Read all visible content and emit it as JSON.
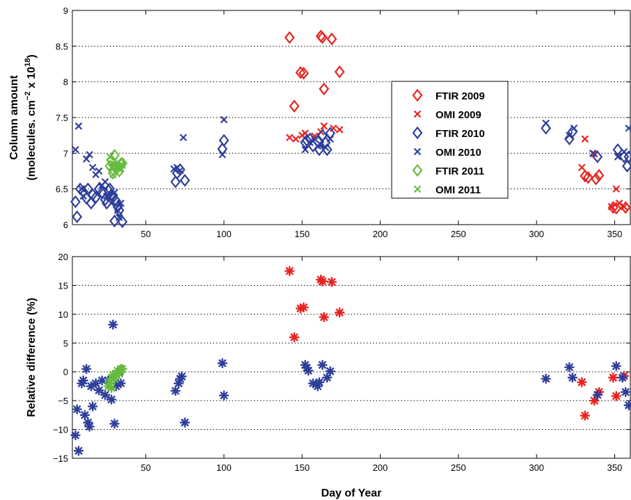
{
  "colors": {
    "y2009": "#e8231f",
    "y2010": "#2e3f9a",
    "y2011": "#66bb3f"
  },
  "chart_data": [
    {
      "type": "scatter",
      "title": "",
      "xlabel": "",
      "ylabel_line1": "Column amount",
      "ylabel_line2": "(molecules. cm",
      "ylabel_exp1": "−2",
      "ylabel_mid": " x 10",
      "ylabel_exp2": "18",
      "ylabel_end": ")",
      "xlim": [
        3,
        360
      ],
      "ylim": [
        6,
        9
      ],
      "xticks": [
        50,
        100,
        150,
        200,
        250,
        300,
        350
      ],
      "yticks": [
        6,
        6.5,
        7,
        7.5,
        8,
        8.5,
        9
      ],
      "ytick_labels": [
        "6",
        "6.5",
        "7",
        "7.5",
        "8",
        "8.5",
        "9"
      ],
      "grid": "horizontal dotted",
      "legend_position": "right-center",
      "series": [
        {
          "name": "FTIR 2009",
          "marker": "diamond",
          "color_key": "y2009",
          "points": [
            [
              142,
              8.62
            ],
            [
              145,
              7.66
            ],
            [
              149,
              8.13
            ],
            [
              151,
              8.12
            ],
            [
              162,
              8.64
            ],
            [
              163,
              8.62
            ],
            [
              164,
              7.9
            ],
            [
              169,
              8.6
            ],
            [
              174,
              8.14
            ],
            [
              331,
              6.68
            ],
            [
              333,
              6.66
            ],
            [
              338,
              6.64
            ],
            [
              340,
              6.69
            ],
            [
              349,
              6.24
            ],
            [
              351,
              6.23
            ],
            [
              357,
              6.24
            ]
          ]
        },
        {
          "name": "OMI 2009",
          "marker": "x",
          "color_key": "y2009",
          "points": [
            [
              142,
              7.22
            ],
            [
              146,
              7.2
            ],
            [
              150,
              7.25
            ],
            [
              152,
              7.28
            ],
            [
              158,
              7.24
            ],
            [
              162,
              7.3
            ],
            [
              164,
              7.38
            ],
            [
              170,
              7.35
            ],
            [
              174,
              7.33
            ],
            [
              329,
              6.8
            ],
            [
              331,
              7.2
            ],
            [
              337,
              6.99
            ],
            [
              348,
              6.25
            ],
            [
              351,
              6.5
            ],
            [
              353,
              6.3
            ],
            [
              356,
              6.25
            ]
          ]
        },
        {
          "name": "FTIR 2010",
          "marker": "diamond",
          "color_key": "y2010",
          "points": [
            [
              5,
              6.32
            ],
            [
              6,
              6.11
            ],
            [
              8,
              6.5
            ],
            [
              10,
              6.46
            ],
            [
              12,
              6.37
            ],
            [
              13,
              6.5
            ],
            [
              15,
              6.3
            ],
            [
              16,
              6.42
            ],
            [
              18,
              6.38
            ],
            [
              20,
              6.5
            ],
            [
              22,
              6.45
            ],
            [
              24,
              6.35
            ],
            [
              25,
              6.3
            ],
            [
              26,
              6.48
            ],
            [
              27,
              6.5
            ],
            [
              28,
              6.42
            ],
            [
              29,
              6.38
            ],
            [
              30,
              6.05
            ],
            [
              31,
              6.33
            ],
            [
              32,
              6.25
            ],
            [
              33,
              6.2
            ],
            [
              35,
              6.04
            ],
            [
              69,
              6.6
            ],
            [
              70,
              6.72
            ],
            [
              72,
              6.77
            ],
            [
              75,
              6.62
            ],
            [
              99,
              7.06
            ],
            [
              100,
              7.18
            ],
            [
              152,
              7.15
            ],
            [
              153,
              7.18
            ],
            [
              155,
              7.2
            ],
            [
              157,
              7.1
            ],
            [
              160,
              7.17
            ],
            [
              161,
              7.05
            ],
            [
              163,
              7.25
            ],
            [
              165,
              7.15
            ],
            [
              166,
              7.05
            ],
            [
              168,
              7.28
            ],
            [
              306,
              7.35
            ],
            [
              321,
              7.2
            ],
            [
              323,
              7.3
            ],
            [
              339,
              6.95
            ],
            [
              352,
              7.05
            ],
            [
              356,
              6.95
            ],
            [
              358,
              6.82
            ],
            [
              359,
              6.95
            ]
          ]
        },
        {
          "name": "OMI 2010",
          "marker": "x",
          "color_key": "y2010",
          "points": [
            [
              5,
              7.05
            ],
            [
              7,
              7.38
            ],
            [
              9,
              6.5
            ],
            [
              10,
              6.4
            ],
            [
              12,
              6.92
            ],
            [
              14,
              6.98
            ],
            [
              16,
              6.8
            ],
            [
              18,
              6.7
            ],
            [
              20,
              6.75
            ],
            [
              22,
              6.55
            ],
            [
              24,
              6.6
            ],
            [
              25,
              6.4
            ],
            [
              27,
              6.38
            ],
            [
              28,
              6.3
            ],
            [
              30,
              6.45
            ],
            [
              32,
              6.2
            ],
            [
              33,
              6.1
            ],
            [
              34,
              6.3
            ],
            [
              68,
              6.78
            ],
            [
              70,
              6.8
            ],
            [
              72,
              6.76
            ],
            [
              74,
              7.22
            ],
            [
              99,
              6.98
            ],
            [
              100,
              7.47
            ],
            [
              152,
              7.05
            ],
            [
              155,
              7.15
            ],
            [
              158,
              7.2
            ],
            [
              160,
              7.1
            ],
            [
              162,
              7.12
            ],
            [
              165,
              7.08
            ],
            [
              168,
              7.2
            ],
            [
              306,
              7.42
            ],
            [
              321,
              7.25
            ],
            [
              324,
              7.35
            ],
            [
              336,
              7.0
            ],
            [
              352,
              6.95
            ],
            [
              356,
              7.02
            ],
            [
              359,
              7.35
            ]
          ]
        },
        {
          "name": "FTIR 2011",
          "marker": "diamond",
          "color_key": "y2011",
          "points": [
            [
              27,
              6.82
            ],
            [
              28,
              6.9
            ],
            [
              29,
              6.72
            ],
            [
              30,
              6.97
            ],
            [
              31,
              6.78
            ],
            [
              32,
              6.8
            ],
            [
              33,
              6.75
            ],
            [
              34,
              6.85
            ],
            [
              35,
              6.86
            ]
          ]
        },
        {
          "name": "OMI 2011",
          "marker": "x",
          "color_key": "y2011",
          "points": [
            [
              27,
              6.95
            ],
            [
              28,
              6.8
            ],
            [
              29,
              6.7
            ],
            [
              30,
              6.85
            ],
            [
              31,
              6.8
            ],
            [
              32,
              6.82
            ],
            [
              33,
              6.78
            ],
            [
              34,
              6.84
            ],
            [
              35,
              6.83
            ]
          ]
        }
      ]
    },
    {
      "type": "scatter",
      "title": "",
      "xlabel": "Day of Year",
      "ylabel": "Relative difference (%)",
      "xlim": [
        3,
        360
      ],
      "ylim": [
        -15,
        20
      ],
      "xticks": [
        50,
        100,
        150,
        200,
        250,
        300,
        350
      ],
      "yticks": [
        -15,
        -10,
        -5,
        0,
        5,
        10,
        15,
        20
      ],
      "ytick_labels": [
        "−15",
        "−10",
        "−5",
        "0",
        "5",
        "10",
        "15",
        "20"
      ],
      "grid": "horizontal dotted",
      "series": [
        {
          "marker": "star",
          "color_key": "y2009",
          "points": [
            [
              142,
              17.5
            ],
            [
              145,
              6
            ],
            [
              149,
              11
            ],
            [
              151,
              11.2
            ],
            [
              162,
              16
            ],
            [
              163,
              15.7
            ],
            [
              164,
              9.5
            ],
            [
              169,
              15.6
            ],
            [
              174,
              10.3
            ],
            [
              329,
              -1.8
            ],
            [
              331,
              -7.6
            ],
            [
              337,
              -5
            ],
            [
              340,
              -3.5
            ],
            [
              349,
              -1
            ],
            [
              351,
              -4.2
            ],
            [
              356,
              -0.7
            ]
          ]
        },
        {
          "marker": "star",
          "color_key": "y2010",
          "points": [
            [
              5,
              -11
            ],
            [
              6,
              -6.5
            ],
            [
              7,
              -13.7
            ],
            [
              9,
              -2
            ],
            [
              10,
              -1.5
            ],
            [
              11,
              -7.5
            ],
            [
              12,
              0.5
            ],
            [
              13,
              -8.8
            ],
            [
              14,
              -9.5
            ],
            [
              15,
              -2.5
            ],
            [
              16,
              -6
            ],
            [
              18,
              -2
            ],
            [
              20,
              -3.2
            ],
            [
              22,
              -1.5
            ],
            [
              24,
              -4
            ],
            [
              26,
              -1.5
            ],
            [
              28,
              -4.8
            ],
            [
              29,
              8.2
            ],
            [
              30,
              -9
            ],
            [
              31,
              -2.5
            ],
            [
              33,
              0
            ],
            [
              34,
              -2
            ],
            [
              69,
              -3.3
            ],
            [
              71,
              -2
            ],
            [
              72,
              -1.2
            ],
            [
              73,
              -0.8
            ],
            [
              75,
              -8.8
            ],
            [
              99,
              1.5
            ],
            [
              100,
              -4.1
            ],
            [
              152,
              1.2
            ],
            [
              153,
              0.7
            ],
            [
              154,
              0.2
            ],
            [
              157,
              -2
            ],
            [
              160,
              -2.5
            ],
            [
              161,
              -1.8
            ],
            [
              163,
              1.2
            ],
            [
              166,
              -1
            ],
            [
              168,
              0.1
            ],
            [
              306,
              -1.2
            ],
            [
              321,
              0.8
            ],
            [
              323,
              -1
            ],
            [
              339,
              -4
            ],
            [
              351,
              1
            ],
            [
              355,
              -1
            ],
            [
              357,
              -3.5
            ],
            [
              359,
              -5.8
            ]
          ]
        },
        {
          "marker": "star",
          "color_key": "y2011",
          "points": [
            [
              26,
              -2.5
            ],
            [
              27,
              -1.5
            ],
            [
              28,
              -2.8
            ],
            [
              29,
              -0.5
            ],
            [
              30,
              -1.2
            ],
            [
              31,
              -0.5
            ],
            [
              32,
              0.2
            ],
            [
              33,
              -0.3
            ],
            [
              34,
              0.5
            ],
            [
              35,
              0.5
            ]
          ]
        }
      ]
    }
  ]
}
